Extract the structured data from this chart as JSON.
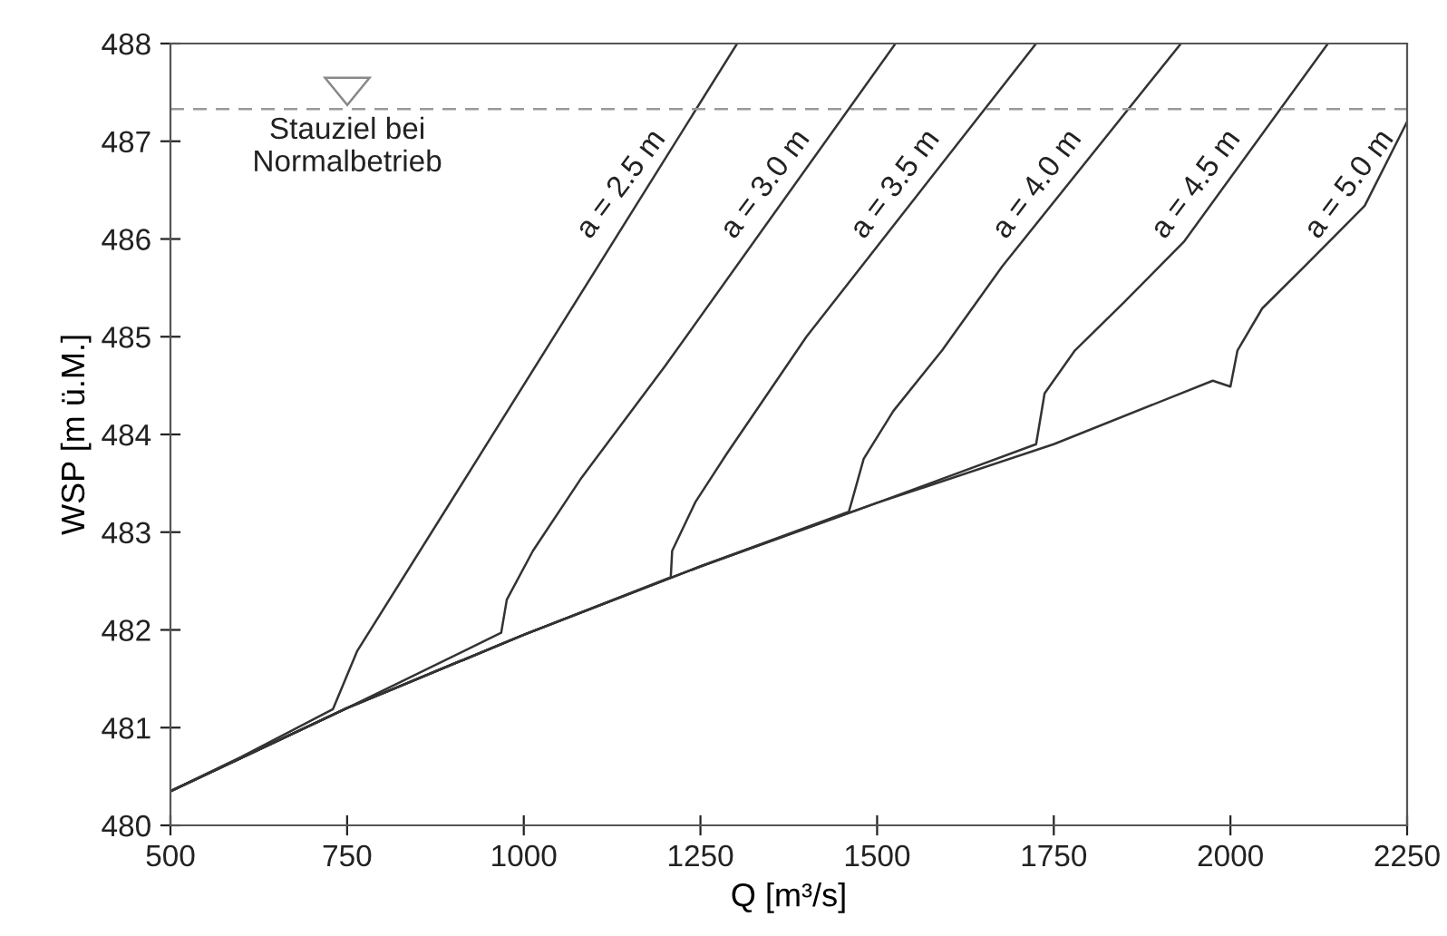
{
  "chart_data": {
    "type": "line",
    "xlabel": "Q [m³/s]",
    "ylabel": "WSP [m ü.M.]",
    "xlim": [
      500,
      2250
    ],
    "xticks": [
      500,
      750,
      1000,
      1250,
      1500,
      1750,
      2000,
      2250
    ],
    "ylim": [
      480,
      488
    ],
    "yticks": [
      480,
      481,
      482,
      483,
      484,
      485,
      486,
      487,
      488
    ],
    "grid": false,
    "legend": false,
    "marker": "none",
    "line_style": "solid",
    "series": [
      {
        "name": "a = 2.5 m",
        "color": "#333333",
        "x": [
          500,
          600,
          730,
          764,
          900,
          1302
        ],
        "values": [
          480.35,
          480.7,
          481.19,
          481.78,
          483.35,
          488
        ]
      },
      {
        "name": "a = 3.0 m",
        "color": "#333333",
        "x": [
          500,
          750,
          968,
          976,
          1013,
          1082,
          1200,
          1526
        ],
        "values": [
          480.35,
          481.2,
          481.97,
          482.31,
          482.81,
          483.56,
          484.7,
          488
        ]
      },
      {
        "name": "a = 3.5 m",
        "color": "#333333",
        "x": [
          500,
          750,
          1000,
          1208,
          1210,
          1243,
          1287,
          1400,
          1725
        ],
        "values": [
          480.35,
          481.2,
          481.95,
          482.54,
          482.81,
          483.31,
          483.8,
          485.0,
          488
        ]
      },
      {
        "name": "a = 4.0 m",
        "color": "#333333",
        "x": [
          500,
          750,
          1000,
          1250,
          1460,
          1464,
          1481,
          1523,
          1592,
          1677,
          1930
        ],
        "values": [
          480.35,
          481.2,
          481.95,
          482.65,
          483.21,
          483.31,
          483.75,
          484.24,
          484.86,
          485.72,
          488
        ]
      },
      {
        "name": "a = 4.5 m",
        "color": "#333333",
        "x": [
          500,
          750,
          1000,
          1250,
          1500,
          1725,
          1737,
          1780,
          1849,
          1934,
          2138
        ],
        "values": [
          480.35,
          481.2,
          481.95,
          482.65,
          483.3,
          483.9,
          484.42,
          484.86,
          485.35,
          485.97,
          488
        ]
      },
      {
        "name": "a = 5.0 m",
        "color": "#333333",
        "x": [
          500,
          750,
          1000,
          1250,
          1500,
          1750,
          1975,
          2000,
          2010,
          2045,
          2105,
          2190,
          2250
        ],
        "values": [
          480.35,
          481.2,
          481.95,
          482.65,
          483.3,
          483.9,
          484.55,
          484.49,
          484.86,
          485.29,
          485.72,
          486.34,
          487.2
        ]
      }
    ],
    "ref_lines": [
      {
        "axis": "y",
        "value": 487.33,
        "label": "Stauziel bei\nNormalbetrieb",
        "color": "#999999",
        "line_style": "dashed"
      }
    ]
  }
}
